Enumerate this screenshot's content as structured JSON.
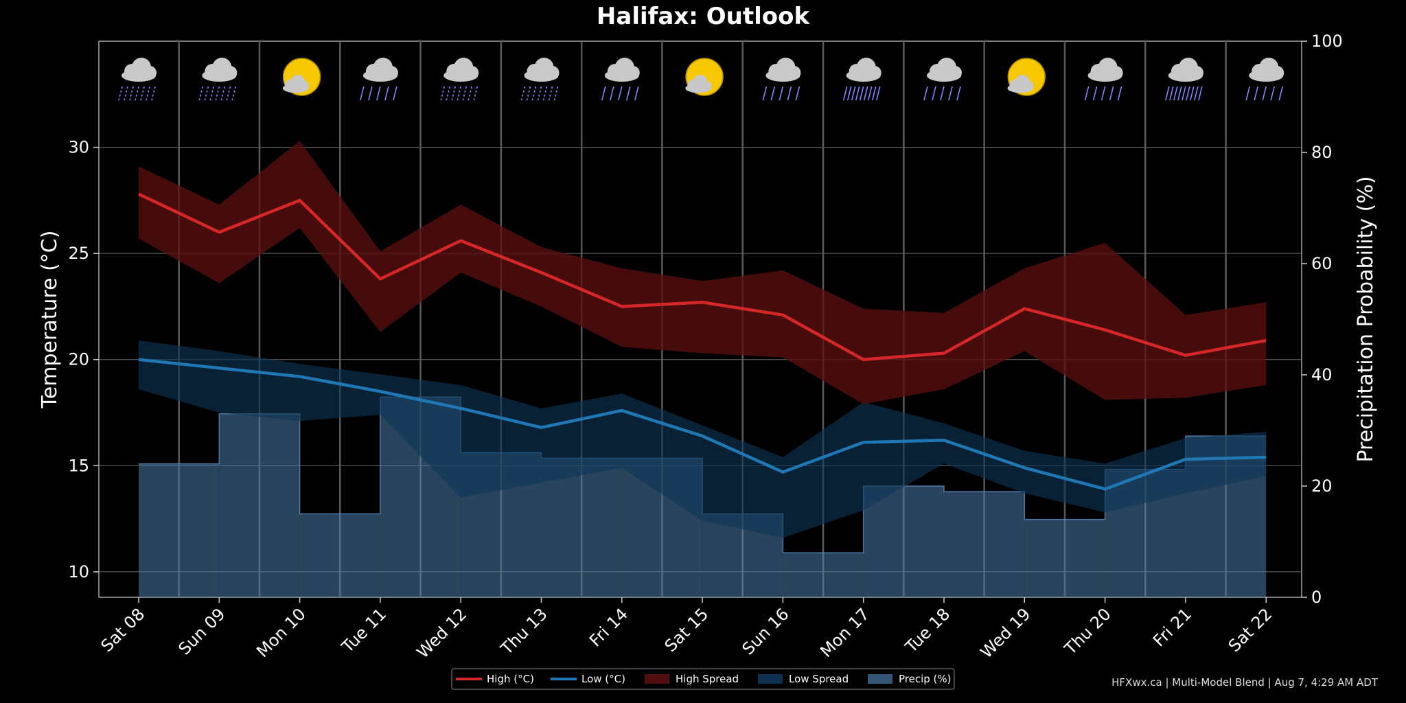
{
  "chart_data": {
    "type": "line",
    "title": "Halifax: Outlook",
    "ylabel_left": "Temperature (°C)",
    "ylabel_right": "Precipitation Probability (%)",
    "ylim_left": [
      8.8,
      35
    ],
    "ylim_right": [
      0,
      100
    ],
    "yticks_left": [
      10,
      15,
      20,
      25,
      30
    ],
    "yticks_right": [
      0,
      20,
      40,
      60,
      80,
      100
    ],
    "grid": true,
    "legend_placement": "bottom-center",
    "categories": [
      "Sat 08",
      "Sun 09",
      "Mon 10",
      "Tue 11",
      "Wed 12",
      "Thu 13",
      "Fri 14",
      "Sat 15",
      "Sun 16",
      "Mon 17",
      "Tue 18",
      "Wed 19",
      "Thu 20",
      "Fri 21",
      "Sat 22"
    ],
    "series": [
      {
        "name": "High (°C)",
        "color": "#d62728",
        "values": [
          27.8,
          26.0,
          27.5,
          23.8,
          25.6,
          24.1,
          22.5,
          22.7,
          22.1,
          20.0,
          20.3,
          22.4,
          21.4,
          20.2,
          20.9
        ]
      },
      {
        "name": "Low (°C)",
        "color": "#1f77b4",
        "values": [
          20.0,
          19.6,
          19.2,
          18.5,
          17.7,
          16.8,
          17.6,
          16.4,
          14.7,
          16.1,
          16.2,
          14.9,
          13.9,
          15.3,
          15.4
        ]
      },
      {
        "name": "High Spread",
        "color": "#5a1010",
        "lower": [
          25.7,
          23.6,
          26.2,
          21.3,
          24.1,
          22.5,
          20.6,
          20.3,
          20.1,
          17.9,
          18.6,
          20.4,
          18.1,
          18.2,
          18.8
        ],
        "upper": [
          29.1,
          27.3,
          30.3,
          25.1,
          27.3,
          25.3,
          24.3,
          23.7,
          24.2,
          22.4,
          22.2,
          24.3,
          25.5,
          22.1,
          22.7
        ]
      },
      {
        "name": "Low Spread",
        "color": "#0f3a5c",
        "lower": [
          18.6,
          17.5,
          17.1,
          17.4,
          13.5,
          14.2,
          14.9,
          12.4,
          11.6,
          12.9,
          15.1,
          13.7,
          12.8,
          13.7,
          14.5
        ],
        "upper": [
          20.9,
          20.4,
          19.8,
          19.3,
          18.8,
          17.7,
          18.4,
          16.9,
          15.4,
          18.0,
          17.0,
          15.7,
          15.1,
          16.3,
          16.6
        ]
      },
      {
        "name": "Precip (%)",
        "color": "#4a7ca8",
        "values": [
          24,
          33,
          15,
          36,
          26,
          25,
          25,
          15,
          8,
          20,
          19,
          14,
          23,
          29,
          29
        ]
      }
    ],
    "weather_icons": [
      "showers-icon",
      "showers-icon",
      "sun-cloud-icon",
      "rain-icon",
      "showers-icon",
      "showers-icon",
      "rain-icon",
      "sun-cloud-icon",
      "rain-icon",
      "heavy-rain-icon",
      "rain-icon",
      "sun-cloud-icon",
      "rain-icon",
      "heavy-rain-icon",
      "rain-icon"
    ]
  },
  "footer": "HFXwx.ca | Multi-Model Blend | Aug 7, 4:29 AM ADT"
}
